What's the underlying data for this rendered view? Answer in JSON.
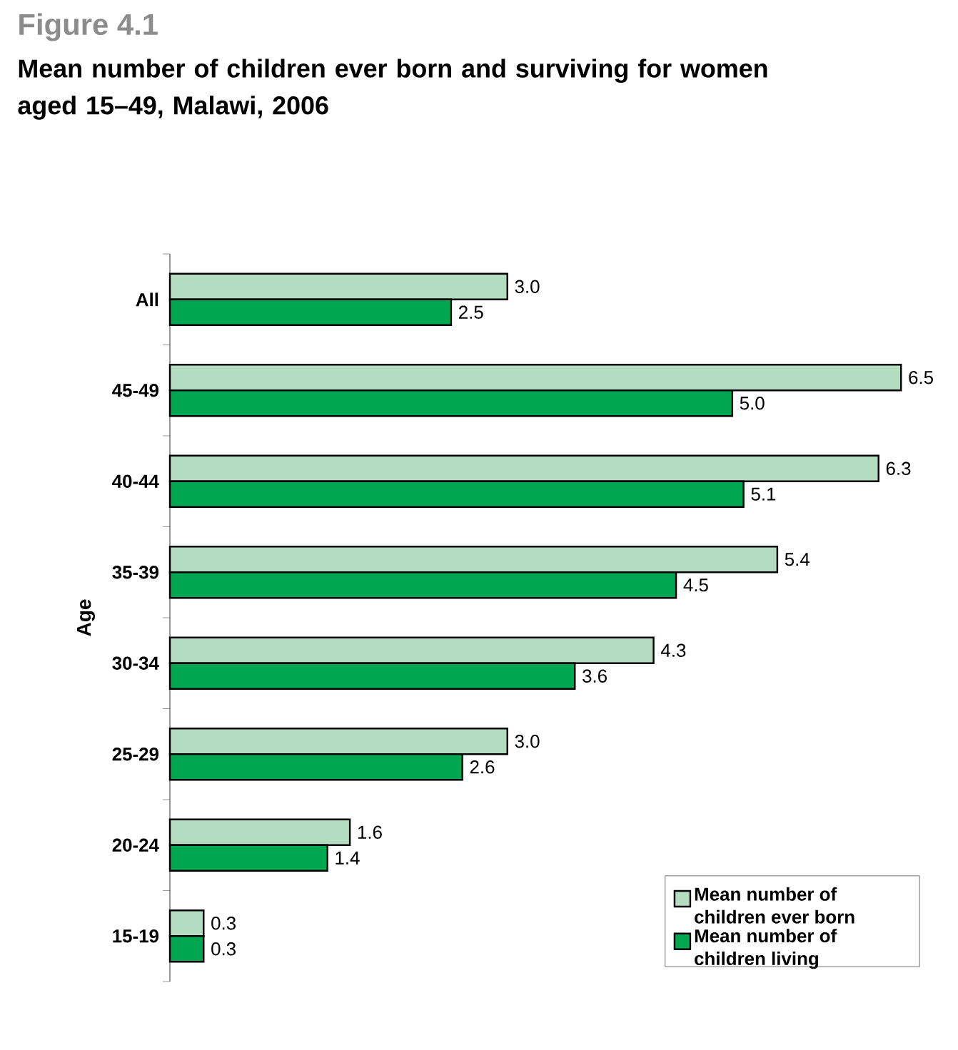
{
  "chart_data": {
    "type": "bar",
    "orientation": "horizontal",
    "title": "Figure 4.1",
    "subtitle": "Mean number of children ever born and surviving for women aged 15–49, Malawi, 2006",
    "ylabel": "Age",
    "categories": [
      "All",
      "45-49",
      "40-44",
      "35-39",
      "30-34",
      "25-29",
      "20-24",
      "15-19"
    ],
    "series": [
      {
        "name": "Mean number of children ever born",
        "color": "#b3dcc0",
        "values": [
          3.0,
          6.5,
          6.3,
          5.4,
          4.3,
          3.0,
          1.6,
          0.3
        ],
        "value_labels": [
          "3.0",
          "6.5",
          "6.3",
          "5.4",
          "4.3",
          "3.0",
          "1.6",
          "0.3"
        ]
      },
      {
        "name": "Mean number of children living",
        "color": "#00a650",
        "values": [
          2.5,
          5.0,
          5.1,
          4.5,
          3.6,
          2.6,
          1.4,
          0.3
        ],
        "value_labels": [
          "2.5",
          "5.0",
          "5.1",
          "4.5",
          "3.6",
          "2.6",
          "1.4",
          "0.3"
        ]
      }
    ],
    "legend": "bottom right",
    "tick_labels": "y"
  }
}
